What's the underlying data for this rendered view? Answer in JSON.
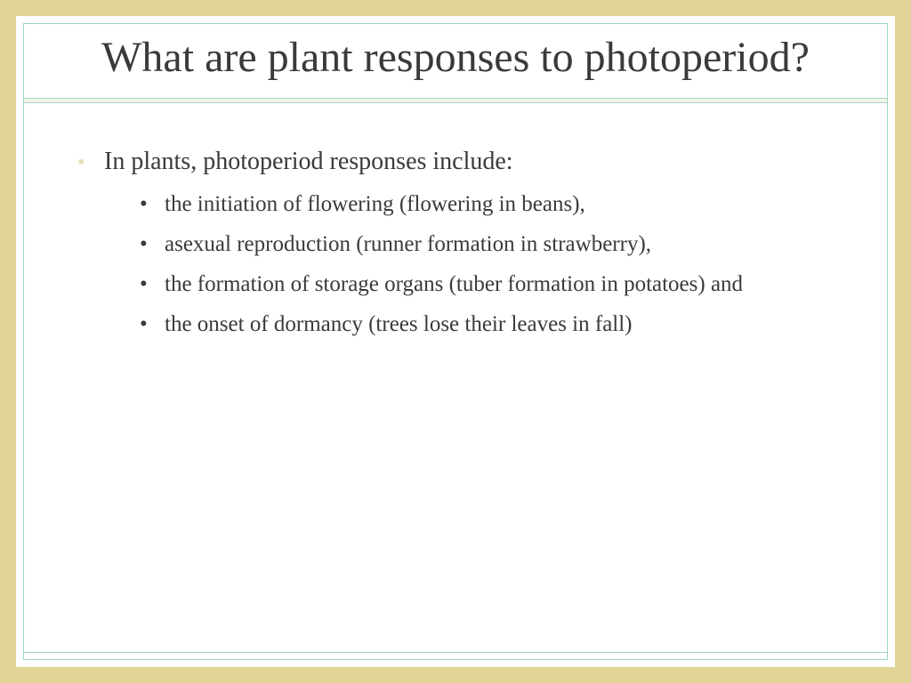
{
  "slide": {
    "title": "What are plant responses to photoperiod?",
    "intro": "In plants, photoperiod responses include:",
    "bullets": [
      "the initiation of flowering (flowering in beans),",
      "asexual reproduction (runner formation in strawberry),",
      "the formation of storage organs (tuber formation in potatoes) and",
      "the onset of dormancy (trees lose their leaves in fall)"
    ]
  },
  "style": {
    "outer_background": "#e0d496",
    "frame_background": "#ffffff",
    "border_color": "#9ed4c8",
    "divider_fill": "#f2f4e2",
    "text_color": "#3a3a3a",
    "intro_bullet_color": "#e6e0b8",
    "title_fontsize": 48,
    "intro_fontsize": 28,
    "bullet_fontsize": 25,
    "font_family": "Garamond"
  }
}
